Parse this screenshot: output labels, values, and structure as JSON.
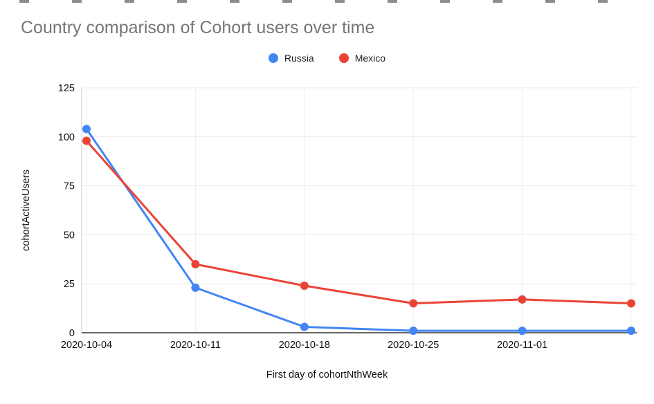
{
  "chart_data": {
    "type": "line",
    "title": "Country comparison of Cohort users over time",
    "xlabel": "First day of cohortNthWeek",
    "ylabel": "cohortActiveUsers",
    "categories": [
      "2020-10-04",
      "2020-10-11",
      "2020-10-18",
      "2020-10-25",
      "2020-11-01",
      ""
    ],
    "series": [
      {
        "name": "Russia",
        "color": "#4285F4",
        "values": [
          104,
          23,
          3,
          1,
          1,
          1
        ]
      },
      {
        "name": "Mexico",
        "color": "#EA4335",
        "values": [
          98,
          35,
          24,
          15,
          17,
          15
        ]
      }
    ],
    "ylim": [
      0,
      125
    ],
    "yticks": [
      0,
      25,
      50,
      75,
      100,
      125
    ],
    "grid": true,
    "legend_position": "top-center",
    "marker": "circle",
    "colors": {
      "grid": "#e8e8e8",
      "axis": "#333333",
      "title_text": "#757575",
      "tick_text": "#111111"
    }
  }
}
